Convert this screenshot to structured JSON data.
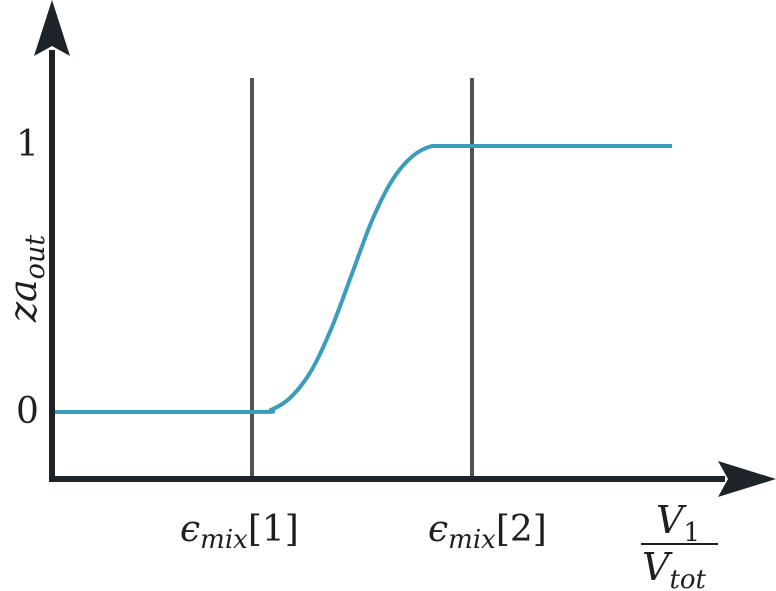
{
  "chart_data": {
    "type": "line",
    "xlabel": {
      "numerator": "V",
      "numerator_sub": "1",
      "denominator": "V",
      "denominator_sub": "tot"
    },
    "ylabel": {
      "base": "za",
      "sub": "out"
    },
    "ylim": [
      -0.25,
      1.5
    ],
    "xlim": [
      0,
      3.26
    ],
    "y_ticks": [
      "0",
      "1"
    ],
    "markers": [
      {
        "label_main": "ϵ",
        "label_sub": "mix",
        "label_index": "[1]",
        "x": 1.0
      },
      {
        "label_main": "ϵ",
        "label_sub": "mix",
        "label_index": "[2]",
        "x": 2.1
      }
    ],
    "series": [
      {
        "x": [
          0,
          1.0,
          1.1,
          1.2,
          1.3,
          1.4,
          1.5,
          1.6,
          1.7,
          1.8,
          1.9,
          2.0,
          2.1,
          3.1
        ],
        "y": [
          0,
          0,
          0.01,
          0.06,
          0.16,
          0.32,
          0.52,
          0.72,
          0.87,
          0.96,
          1.0,
          1.0,
          1.0,
          1.0
        ]
      }
    ],
    "colors": {
      "curve": "#3a9dbb",
      "markers": "#4d5559",
      "axes": "#1c2429"
    }
  }
}
